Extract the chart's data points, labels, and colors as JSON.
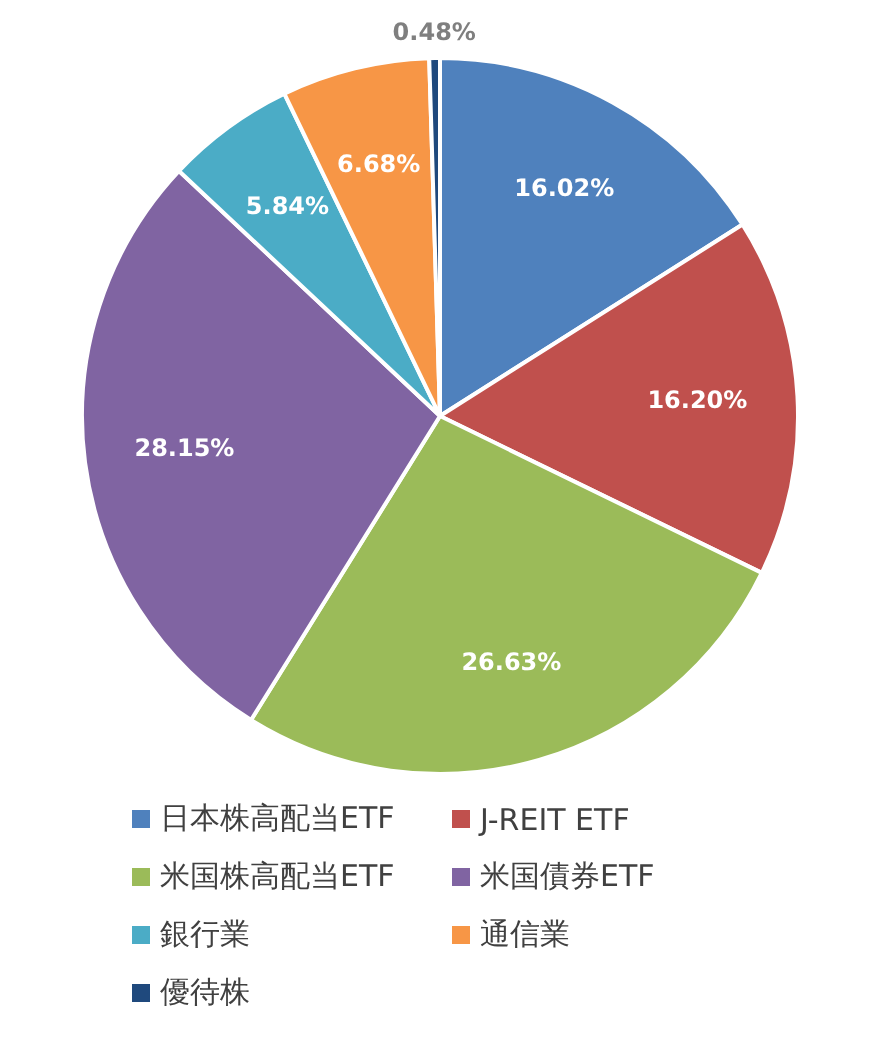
{
  "chart_data": {
    "type": "pie",
    "categories": [
      "日本株高配当ETF",
      "J-REIT ETF",
      "米国株高配当ETF",
      "米国債券ETF",
      "銀行業",
      "通信業",
      "優待株"
    ],
    "values": [
      16.02,
      16.2,
      26.63,
      28.15,
      5.84,
      6.68,
      0.48
    ],
    "colors": [
      "#4f81bd",
      "#c0504d",
      "#9bbb59",
      "#8064a2",
      "#4bacc6",
      "#f79646",
      "#1f497d"
    ],
    "value_labels": [
      "16.02%",
      "16.20%",
      "26.63%",
      "28.15%",
      "5.84%",
      "6.68%",
      "0.48%"
    ],
    "legend": "bottom"
  }
}
